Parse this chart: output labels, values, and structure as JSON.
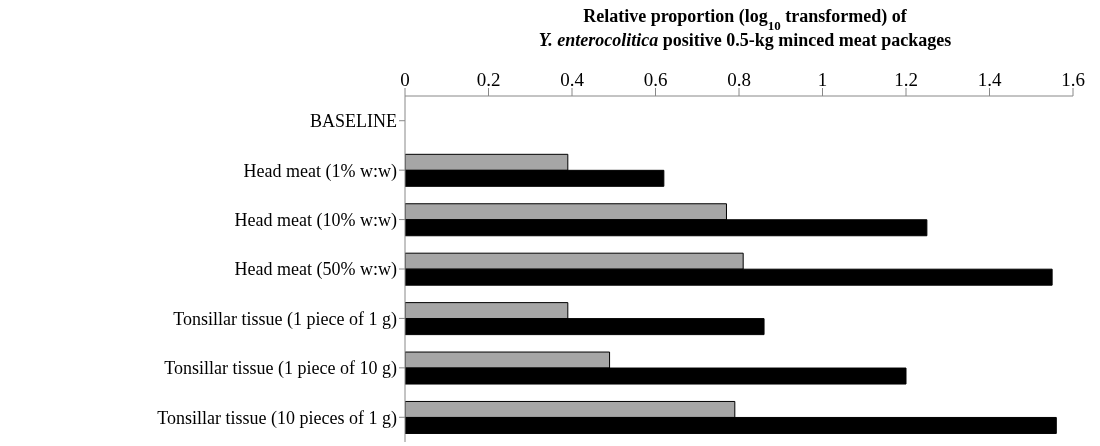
{
  "chart_data": {
    "type": "bar",
    "orientation": "horizontal",
    "title": "Relative proportion (log$_{10}$ transformed) of\nY. enterocolitica positive 0.5-kg minced meat packages",
    "categories": [
      "BASELINE",
      "Head meat (1% w:w)",
      "Head meat (10% w:w)",
      "Head meat (50% w:w)",
      "Tonsillar tissue (1 piece of 1 g)",
      "Tonsillar tissue (1 piece of 10 g)",
      "Tonsillar tissue (10 pieces of 1 g)"
    ],
    "series": [
      {
        "color": "#a6a6a6",
        "values": [
          0,
          0.39,
          0.77,
          0.81,
          0.39,
          0.49,
          0.79
        ]
      },
      {
        "color": "#000000",
        "values": [
          0,
          0.62,
          1.25,
          1.55,
          0.86,
          1.2,
          1.56
        ]
      }
    ],
    "xlim": [
      0,
      1.6
    ],
    "xticks": [
      0,
      0.2,
      0.4,
      0.6,
      0.8,
      1,
      1.2,
      1.4,
      1.6
    ]
  }
}
